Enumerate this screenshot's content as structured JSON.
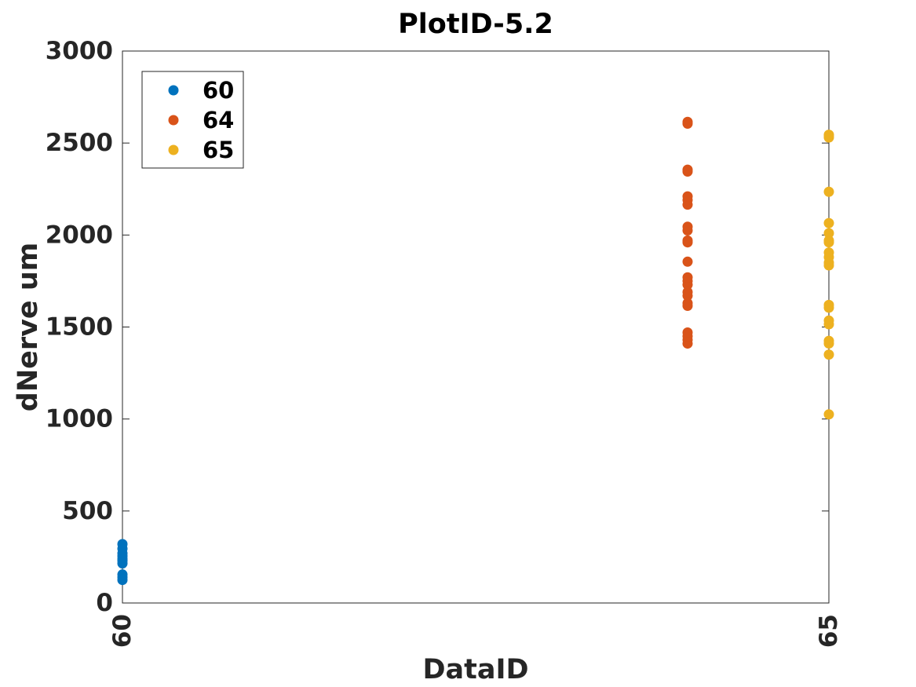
{
  "chart_data": {
    "type": "scatter",
    "title": "PlotID-5.2",
    "xlabel": "DataID",
    "ylabel": "dNerve um",
    "xlim": [
      60,
      65
    ],
    "ylim": [
      0,
      3000
    ],
    "xticks": [
      60,
      65
    ],
    "xtick_labels": [
      "60",
      "65"
    ],
    "yticks": [
      0,
      500,
      1000,
      1500,
      2000,
      2500,
      3000
    ],
    "ytick_labels": [
      "0",
      "500",
      "1000",
      "1500",
      "2000",
      "2500",
      "3000"
    ],
    "grid": false,
    "legend": "top-left",
    "series": [
      {
        "name": "60",
        "color": "#0072bd",
        "x": [
          60,
          60,
          60,
          60,
          60,
          60,
          60,
          60,
          60,
          60
        ],
        "y": [
          125,
          140,
          155,
          215,
          230,
          240,
          255,
          270,
          295,
          320
        ]
      },
      {
        "name": "64",
        "color": "#d95319",
        "x": [
          64,
          64,
          64,
          64,
          64,
          64,
          64,
          64,
          64,
          64,
          64,
          64,
          64,
          64,
          64,
          64,
          64,
          64,
          64,
          64,
          64,
          64,
          64
        ],
        "y": [
          1410,
          1430,
          1450,
          1470,
          1615,
          1630,
          1670,
          1690,
          1730,
          1750,
          1770,
          1855,
          1960,
          1970,
          2025,
          2045,
          2165,
          2190,
          2210,
          2345,
          2355,
          2605,
          2615
        ]
      },
      {
        "name": "65",
        "color": "#edb120",
        "x": [
          65,
          65,
          65,
          65,
          65,
          65,
          65,
          65,
          65,
          65,
          65,
          65,
          65,
          65,
          65,
          65,
          65,
          65,
          65,
          65
        ],
        "y": [
          1025,
          1350,
          1410,
          1425,
          1515,
          1535,
          1605,
          1620,
          1835,
          1850,
          1880,
          1905,
          1960,
          1970,
          2010,
          2065,
          2235,
          2530,
          2540,
          2545
        ]
      }
    ]
  }
}
